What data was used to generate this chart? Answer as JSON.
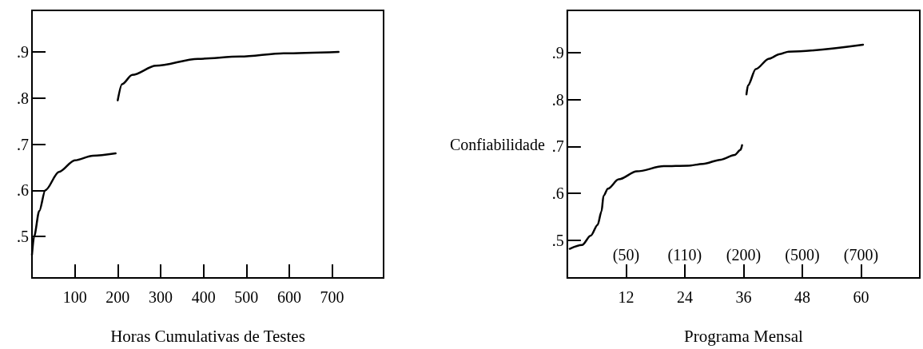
{
  "chart_data": [
    {
      "type": "line",
      "xlabel": "Horas Cumulativas de Testes",
      "xlim": [
        0,
        820
      ],
      "ylim": [
        0.41,
        0.99
      ],
      "xticks": [
        100,
        200,
        300,
        400,
        500,
        600,
        700
      ],
      "yticks": [
        {
          "value": 0.5,
          "label": ".5"
        },
        {
          "value": 0.6,
          "label": ".6"
        },
        {
          "value": 0.7,
          "label": ".7"
        },
        {
          "value": 0.8,
          "label": ".8"
        },
        {
          "value": 0.9,
          "label": ".9"
        }
      ],
      "grid": false,
      "marker": "none",
      "line_style": "solid",
      "series": [
        {
          "color": "#000000",
          "x": [
            0,
            5,
            17,
            31,
            63,
            100,
            142,
            195
          ],
          "values": [
            0.46,
            0.5,
            0.555,
            0.6,
            0.64,
            0.665,
            0.675,
            0.68
          ]
        },
        {
          "color": "#000000",
          "x": [
            200,
            210,
            234,
            289,
            387,
            486,
            587,
            715
          ],
          "values": [
            0.795,
            0.83,
            0.85,
            0.87,
            0.885,
            0.89,
            0.897,
            0.9
          ]
        }
      ]
    },
    {
      "type": "line",
      "xlabel": "Programa Mensal",
      "ylabel": "Confiabilidade",
      "xlim": [
        0,
        72
      ],
      "ylim": [
        0.42,
        0.99
      ],
      "xticks": [
        12,
        24,
        36,
        48,
        60
      ],
      "annotations": [
        "(50)",
        "(110)",
        "(200)",
        "(500)",
        "(700)"
      ],
      "yticks": [
        {
          "value": 0.5,
          "label": ".5"
        },
        {
          "value": 0.6,
          "label": ".6"
        },
        {
          "value": 0.7,
          "label": ".7"
        },
        {
          "value": 0.8,
          "label": ".8"
        },
        {
          "value": 0.9,
          "label": ".9"
        }
      ],
      "grid": false,
      "marker": "none",
      "line_style": "solid",
      "series": [
        {
          "color": "#000000",
          "x": [
            0.5,
            3,
            4.8,
            6.2,
            7,
            7.4,
            8.3,
            10.5,
            14.2,
            19.7,
            24.6,
            27.7,
            31.4,
            34.2,
            35.4,
            35.7
          ],
          "values": [
            0.482,
            0.49,
            0.51,
            0.533,
            0.562,
            0.595,
            0.61,
            0.63,
            0.647,
            0.658,
            0.659,
            0.663,
            0.672,
            0.682,
            0.693,
            0.703
          ]
        },
        {
          "color": "#000000",
          "x": [
            36.6,
            36.9,
            38.5,
            41.2,
            43.4,
            45.2,
            60.4
          ],
          "values": [
            0.811,
            0.83,
            0.865,
            0.887,
            0.897,
            0.902,
            0.917
          ]
        }
      ]
    }
  ]
}
